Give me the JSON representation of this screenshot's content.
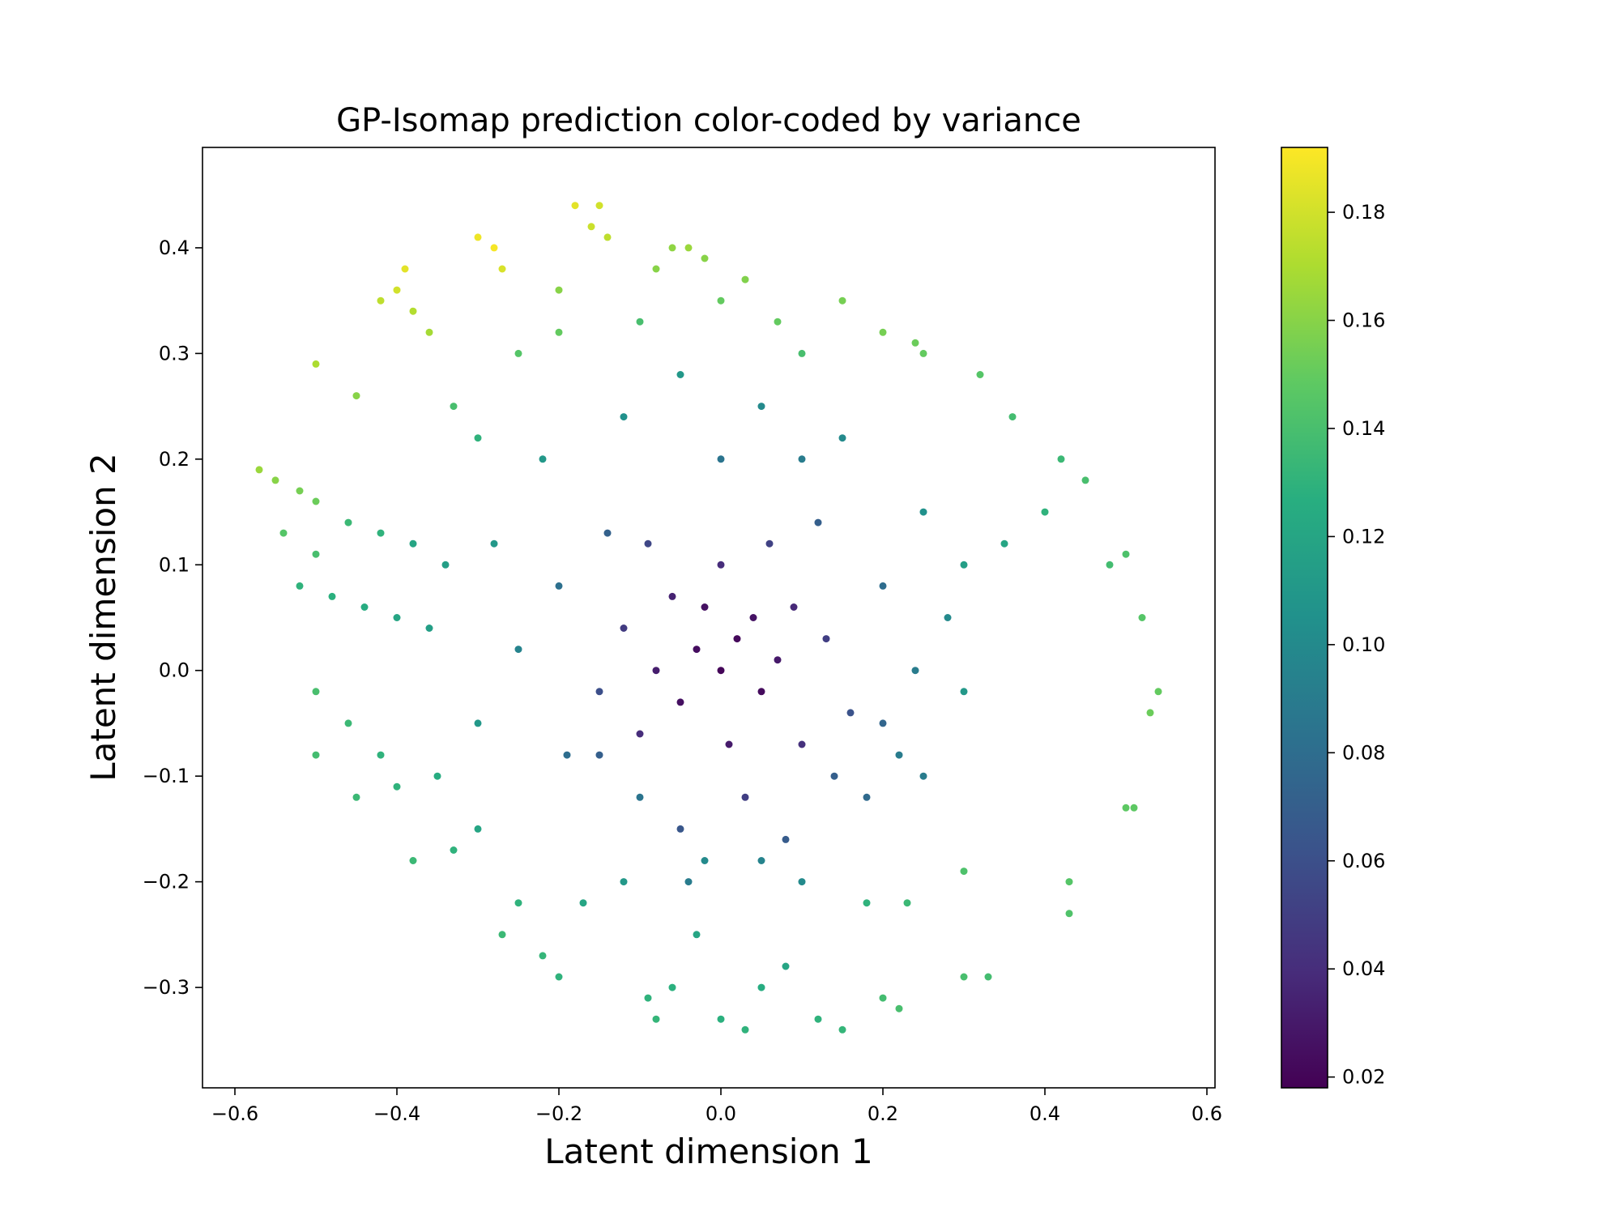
{
  "chart_data": {
    "type": "scatter",
    "title": "GP-Isomap prediction color-coded by variance",
    "xlabel": "Latent dimension 1",
    "ylabel": "Latent dimension 2",
    "xlim": [
      -0.64,
      0.61
    ],
    "ylim": [
      -0.395,
      0.495
    ],
    "xticks": [
      -0.6,
      -0.4,
      -0.2,
      0.0,
      0.2,
      0.4,
      0.6
    ],
    "xtick_labels": [
      "−0.6",
      "−0.4",
      "−0.2",
      "0.0",
      "0.2",
      "0.4",
      "0.6"
    ],
    "yticks": [
      -0.3,
      -0.2,
      -0.1,
      0.0,
      0.1,
      0.2,
      0.3,
      0.4
    ],
    "ytick_labels": [
      "−0.3",
      "−0.2",
      "−0.1",
      "0.0",
      "0.1",
      "0.2",
      "0.3",
      "0.4"
    ],
    "grid": false,
    "legend": "none",
    "colorbar": {
      "colormap": "viridis",
      "range": [
        0.018,
        0.192
      ],
      "ticks": [
        0.02,
        0.04,
        0.06,
        0.08,
        0.1,
        0.12,
        0.14,
        0.16,
        0.18
      ],
      "tick_labels": [
        "0.02",
        "0.04",
        "0.06",
        "0.08",
        "0.10",
        "0.12",
        "0.14",
        "0.16",
        "0.18"
      ],
      "placement": "right"
    },
    "points": [
      [
        0.0,
        0.0,
        0.02
      ],
      [
        0.02,
        0.03,
        0.022
      ],
      [
        -0.03,
        0.02,
        0.024
      ],
      [
        0.05,
        -0.02,
        0.023
      ],
      [
        -0.05,
        -0.03,
        0.025
      ],
      [
        0.04,
        0.05,
        0.027
      ],
      [
        -0.02,
        0.06,
        0.026
      ],
      [
        0.07,
        0.01,
        0.03
      ],
      [
        -0.08,
        0.0,
        0.032
      ],
      [
        0.01,
        -0.07,
        0.031
      ],
      [
        -0.06,
        0.07,
        0.035
      ],
      [
        0.09,
        0.06,
        0.038
      ],
      [
        -0.1,
        -0.06,
        0.04
      ],
      [
        0.1,
        -0.07,
        0.042
      ],
      [
        0.0,
        0.1,
        0.04
      ],
      [
        -0.12,
        0.04,
        0.048
      ],
      [
        0.13,
        0.03,
        0.05
      ],
      [
        0.06,
        0.12,
        0.052
      ],
      [
        -0.09,
        0.12,
        0.055
      ],
      [
        0.03,
        -0.12,
        0.05
      ],
      [
        -0.15,
        -0.02,
        0.06
      ],
      [
        0.16,
        -0.04,
        0.062
      ],
      [
        0.12,
        0.14,
        0.07
      ],
      [
        -0.14,
        0.13,
        0.072
      ],
      [
        0.08,
        -0.16,
        0.068
      ],
      [
        -0.05,
        -0.15,
        0.065
      ],
      [
        0.2,
        0.08,
        0.08
      ],
      [
        -0.2,
        0.08,
        0.082
      ],
      [
        0.18,
        -0.12,
        0.078
      ],
      [
        -0.19,
        -0.08,
        0.08
      ],
      [
        0.0,
        0.2,
        0.085
      ],
      [
        -0.04,
        -0.2,
        0.09
      ],
      [
        0.24,
        0.0,
        0.09
      ],
      [
        -0.25,
        0.02,
        0.095
      ],
      [
        0.15,
        0.22,
        0.1
      ],
      [
        -0.12,
        0.24,
        0.105
      ],
      [
        0.25,
        0.15,
        0.105
      ],
      [
        -0.28,
        0.12,
        0.11
      ],
      [
        0.22,
        -0.08,
        0.09
      ],
      [
        -0.3,
        -0.05,
        0.11
      ],
      [
        0.3,
        0.1,
        0.115
      ],
      [
        0.3,
        -0.02,
        0.11
      ],
      [
        0.35,
        0.12,
        0.12
      ],
      [
        0.4,
        0.15,
        0.13
      ],
      [
        0.45,
        0.18,
        0.14
      ],
      [
        0.48,
        0.1,
        0.138
      ],
      [
        0.52,
        0.05,
        0.145
      ],
      [
        0.5,
        0.11,
        0.142
      ],
      [
        0.54,
        -0.02,
        0.15
      ],
      [
        0.53,
        -0.04,
        0.152
      ],
      [
        0.51,
        -0.13,
        0.148
      ],
      [
        0.42,
        0.2,
        0.135
      ],
      [
        0.36,
        0.24,
        0.138
      ],
      [
        0.32,
        0.28,
        0.145
      ],
      [
        0.25,
        0.3,
        0.15
      ],
      [
        0.2,
        0.32,
        0.155
      ],
      [
        0.24,
        0.31,
        0.152
      ],
      [
        0.15,
        0.35,
        0.155
      ],
      [
        0.1,
        0.3,
        0.14
      ],
      [
        0.03,
        0.37,
        0.158
      ],
      [
        0.0,
        0.35,
        0.15
      ],
      [
        -0.04,
        0.4,
        0.165
      ],
      [
        -0.06,
        0.4,
        0.162
      ],
      [
        -0.02,
        0.39,
        0.16
      ],
      [
        -0.08,
        0.38,
        0.16
      ],
      [
        -0.15,
        0.44,
        0.18
      ],
      [
        -0.18,
        0.44,
        0.185
      ],
      [
        -0.16,
        0.42,
        0.178
      ],
      [
        -0.14,
        0.41,
        0.175
      ],
      [
        -0.2,
        0.36,
        0.16
      ],
      [
        -0.28,
        0.4,
        0.19
      ],
      [
        -0.3,
        0.41,
        0.188
      ],
      [
        -0.27,
        0.38,
        0.182
      ],
      [
        -0.39,
        0.38,
        0.185
      ],
      [
        -0.4,
        0.36,
        0.18
      ],
      [
        -0.38,
        0.34,
        0.172
      ],
      [
        -0.36,
        0.32,
        0.168
      ],
      [
        -0.42,
        0.35,
        0.175
      ],
      [
        -0.5,
        0.29,
        0.17
      ],
      [
        -0.45,
        0.26,
        0.16
      ],
      [
        -0.57,
        0.19,
        0.165
      ],
      [
        -0.55,
        0.18,
        0.16
      ],
      [
        -0.52,
        0.17,
        0.155
      ],
      [
        -0.5,
        0.16,
        0.152
      ],
      [
        -0.54,
        0.13,
        0.145
      ],
      [
        -0.5,
        0.11,
        0.14
      ],
      [
        -0.46,
        0.14,
        0.135
      ],
      [
        -0.42,
        0.13,
        0.13
      ],
      [
        -0.38,
        0.12,
        0.12
      ],
      [
        -0.34,
        0.1,
        0.115
      ],
      [
        -0.52,
        0.08,
        0.13
      ],
      [
        -0.48,
        0.07,
        0.128
      ],
      [
        -0.44,
        0.06,
        0.125
      ],
      [
        -0.4,
        0.05,
        0.12
      ],
      [
        -0.36,
        0.04,
        0.115
      ],
      [
        -0.5,
        -0.02,
        0.14
      ],
      [
        -0.46,
        -0.05,
        0.135
      ],
      [
        -0.42,
        -0.08,
        0.13
      ],
      [
        -0.5,
        -0.08,
        0.138
      ],
      [
        -0.45,
        -0.12,
        0.135
      ],
      [
        -0.4,
        -0.11,
        0.13
      ],
      [
        -0.35,
        -0.1,
        0.125
      ],
      [
        -0.3,
        -0.15,
        0.12
      ],
      [
        -0.38,
        -0.18,
        0.135
      ],
      [
        -0.33,
        -0.17,
        0.13
      ],
      [
        -0.25,
        -0.22,
        0.13
      ],
      [
        -0.27,
        -0.25,
        0.135
      ],
      [
        -0.22,
        -0.27,
        0.132
      ],
      [
        -0.2,
        -0.29,
        0.13
      ],
      [
        -0.17,
        -0.22,
        0.12
      ],
      [
        -0.12,
        -0.2,
        0.11
      ],
      [
        -0.09,
        -0.31,
        0.13
      ],
      [
        -0.08,
        -0.33,
        0.132
      ],
      [
        -0.06,
        -0.3,
        0.128
      ],
      [
        -0.03,
        -0.25,
        0.12
      ],
      [
        0.0,
        -0.33,
        0.128
      ],
      [
        0.03,
        -0.34,
        0.13
      ],
      [
        0.05,
        -0.3,
        0.125
      ],
      [
        0.08,
        -0.28,
        0.12
      ],
      [
        0.12,
        -0.33,
        0.13
      ],
      [
        0.15,
        -0.34,
        0.132
      ],
      [
        0.2,
        -0.31,
        0.138
      ],
      [
        0.22,
        -0.32,
        0.14
      ],
      [
        0.18,
        -0.22,
        0.13
      ],
      [
        0.23,
        -0.22,
        0.135
      ],
      [
        0.3,
        -0.29,
        0.14
      ],
      [
        0.33,
        -0.29,
        0.138
      ],
      [
        0.3,
        -0.19,
        0.142
      ],
      [
        0.43,
        -0.2,
        0.145
      ],
      [
        0.43,
        -0.23,
        0.143
      ],
      [
        0.5,
        -0.13,
        0.148
      ],
      [
        0.1,
        -0.2,
        0.1
      ],
      [
        0.05,
        -0.18,
        0.095
      ],
      [
        -0.02,
        -0.18,
        0.1
      ],
      [
        -0.1,
        -0.12,
        0.085
      ],
      [
        -0.15,
        -0.08,
        0.07
      ],
      [
        0.14,
        -0.1,
        0.07
      ],
      [
        0.2,
        -0.05,
        0.075
      ],
      [
        0.25,
        -0.1,
        0.09
      ],
      [
        0.28,
        0.05,
        0.1
      ],
      [
        0.1,
        0.2,
        0.09
      ],
      [
        -0.05,
        0.28,
        0.11
      ],
      [
        0.05,
        0.25,
        0.1
      ],
      [
        -0.22,
        0.2,
        0.11
      ],
      [
        -0.3,
        0.22,
        0.13
      ],
      [
        -0.33,
        0.25,
        0.14
      ],
      [
        -0.25,
        0.3,
        0.145
      ],
      [
        -0.2,
        0.32,
        0.15
      ],
      [
        -0.1,
        0.33,
        0.14
      ],
      [
        0.07,
        0.33,
        0.15
      ]
    ]
  }
}
